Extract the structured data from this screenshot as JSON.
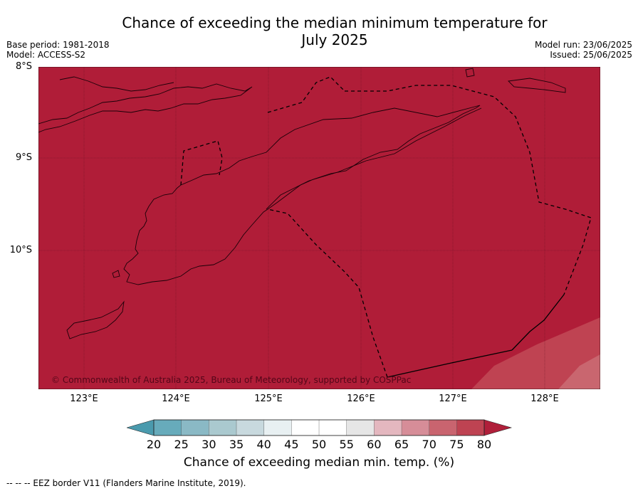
{
  "title_line1": "Chance of exceeding the median minimum temperature for",
  "title_line2": "July 2025",
  "meta": {
    "base_period": "Base period: 1981-2018",
    "model": "Model: ACCESS-S2",
    "model_run": "Model run: 23/06/2025",
    "issued": "Issued: 25/06/2025"
  },
  "map": {
    "lat_labels": [
      "8°S",
      "9°S",
      "10°S"
    ],
    "lon_labels": [
      "123°E",
      "124°E",
      "125°E",
      "126°E",
      "127°E",
      "128°E"
    ],
    "copyright": "© Commonwealth of Australia 2025, Bureau of Meteorology, supported by COSPPac",
    "fill_category_percent": "80+"
  },
  "colorbar": {
    "ticks": [
      "20",
      "25",
      "30",
      "35",
      "40",
      "45",
      "50",
      "55",
      "60",
      "65",
      "70",
      "75",
      "80"
    ],
    "colors": [
      "#4a9aad",
      "#67abbb",
      "#8ab9c5",
      "#aac9cf",
      "#c8d9de",
      "#e8f0f2",
      "#ffffff",
      "#ffffff",
      "#e6e6e6",
      "#e4b7bf",
      "#d68d98",
      "#c9646f",
      "#be4352",
      "#b01f3a"
    ],
    "label": "Chance of exceeding median min. temp. (%)"
  },
  "footnote": "--  --  -- EEZ border V11 (Flanders Marine Institute, 2019)."
}
